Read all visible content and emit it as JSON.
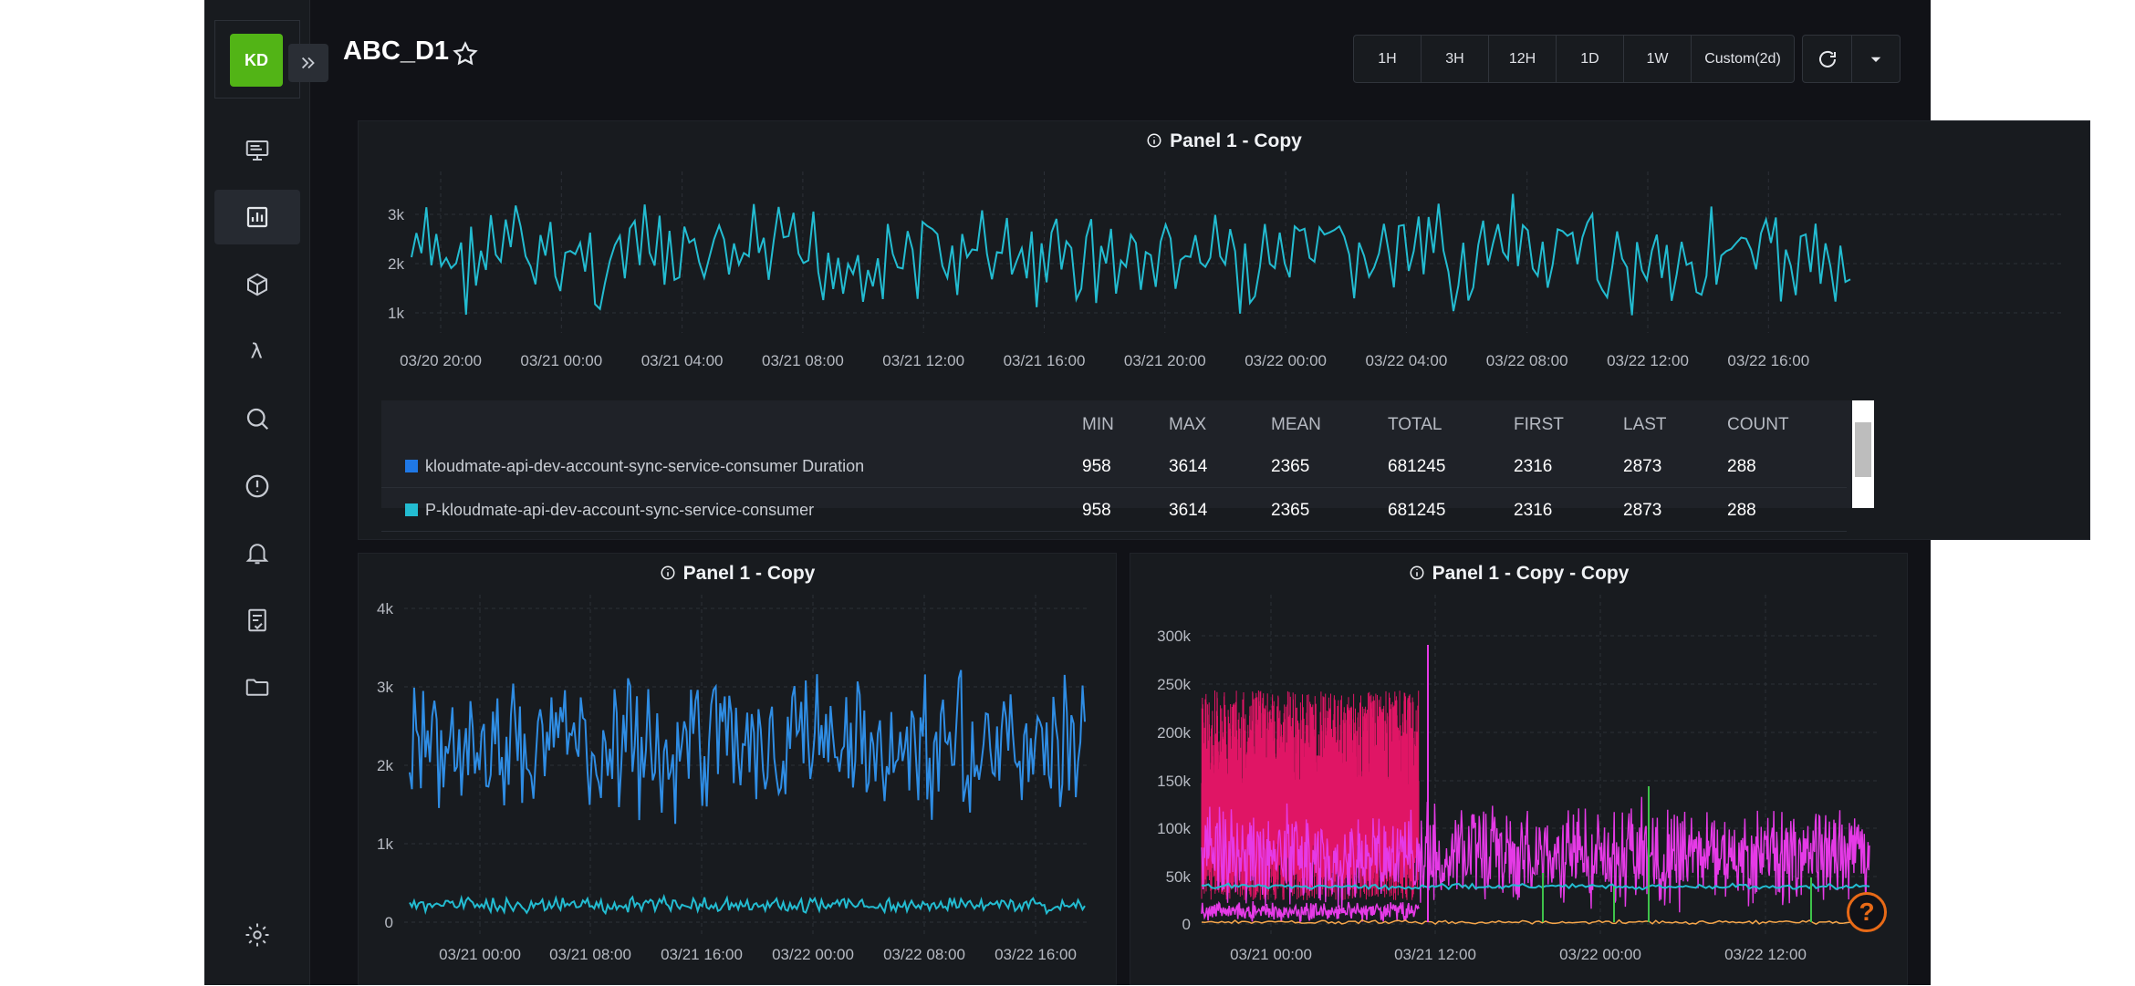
{
  "app": {
    "logo": "KD",
    "dashboard_title": "ABC_D1"
  },
  "sidebar": {
    "items": [
      {
        "name": "monitor-icon"
      },
      {
        "name": "dashboard-icon"
      },
      {
        "name": "package-icon"
      },
      {
        "name": "lambda-icon"
      },
      {
        "name": "search-icon"
      },
      {
        "name": "alert-icon"
      },
      {
        "name": "bell-icon"
      },
      {
        "name": "report-icon"
      },
      {
        "name": "folder-icon"
      },
      {
        "name": "gear-icon"
      }
    ]
  },
  "toolbar": {
    "ranges": [
      "1H",
      "3H",
      "12H",
      "1D",
      "1W",
      "Custom(2d)"
    ]
  },
  "panels": {
    "top": {
      "title": "Panel 1 - Copy",
      "y_ticks": [
        "3k",
        "2k",
        "1k"
      ],
      "x_ticks": [
        "03/20 20:00",
        "03/21 00:00",
        "03/21 04:00",
        "03/21 08:00",
        "03/21 12:00",
        "03/21 16:00",
        "03/21 20:00",
        "03/22 00:00",
        "03/22 04:00",
        "03/22 08:00",
        "03/22 12:00",
        "03/22 16:00"
      ]
    },
    "bottom_left": {
      "title": "Panel 1 - Copy",
      "y_ticks": [
        "4k",
        "3k",
        "2k",
        "1k",
        "0"
      ],
      "x_ticks": [
        "03/21 00:00",
        "03/21 08:00",
        "03/21 16:00",
        "03/22 00:00",
        "03/22 08:00",
        "03/22 16:00"
      ]
    },
    "bottom_right": {
      "title": "Panel 1 - Copy - Copy",
      "y_ticks": [
        "300k",
        "250k",
        "200k",
        "150k",
        "100k",
        "50k",
        "0"
      ],
      "x_ticks": [
        "03/21 00:00",
        "03/21 12:00",
        "03/22 00:00",
        "03/22 12:00"
      ]
    }
  },
  "legend": {
    "headers": [
      "MIN",
      "MAX",
      "MEAN",
      "TOTAL",
      "FIRST",
      "LAST",
      "COUNT"
    ],
    "rows": [
      {
        "name": "kloudmate-api-dev-account-sync-service-consumer Duration",
        "color": "#1f78e6",
        "values": [
          "958",
          "3614",
          "2365",
          "681245",
          "2316",
          "2873",
          "288"
        ]
      },
      {
        "name": "P-kloudmate-api-dev-account-sync-service-consumer",
        "color": "#23bcd1",
        "values": [
          "958",
          "3614",
          "2365",
          "681245",
          "2316",
          "2873",
          "288"
        ]
      }
    ]
  },
  "chart_data": [
    {
      "type": "line",
      "title": "Panel 1 - Copy",
      "x": [
        "03/20 20:00",
        "03/21 00:00",
        "03/21 04:00",
        "03/21 08:00",
        "03/21 12:00",
        "03/21 16:00",
        "03/21 20:00",
        "03/22 00:00",
        "03/22 04:00",
        "03/22 08:00",
        "03/22 12:00",
        "03/22 16:00"
      ],
      "series": [
        {
          "name": "kloudmate-api-dev-account-sync-service-consumer Duration",
          "values": [
            2316,
            2600,
            2100,
            2500,
            2300,
            2700,
            2200,
            2400,
            2600,
            2300,
            2500,
            2873
          ]
        }
      ],
      "ylim": [
        700,
        3800
      ],
      "grid": true
    },
    {
      "type": "line",
      "title": "Panel 1 - Copy",
      "x": [
        "03/21 00:00",
        "03/21 08:00",
        "03/21 16:00",
        "03/22 00:00",
        "03/22 08:00",
        "03/22 16:00"
      ],
      "series": [
        {
          "name": "kloudmate-api-dev-account-sync-service-consumer Duration",
          "values": [
            2400,
            2300,
            2500,
            2200,
            2400,
            2800
          ]
        },
        {
          "name": "P-kloudmate-api-dev-account-sync-service-consumer",
          "values": [
            250,
            240,
            260,
            230,
            250,
            270
          ]
        }
      ],
      "ylim": [
        0,
        4000
      ],
      "grid": true
    },
    {
      "type": "line",
      "title": "Panel 1 - Copy - Copy",
      "x": [
        "03/21 00:00",
        "03/21 12:00",
        "03/22 00:00",
        "03/22 12:00"
      ],
      "ylim": [
        0,
        320000
      ],
      "grid": true
    }
  ]
}
